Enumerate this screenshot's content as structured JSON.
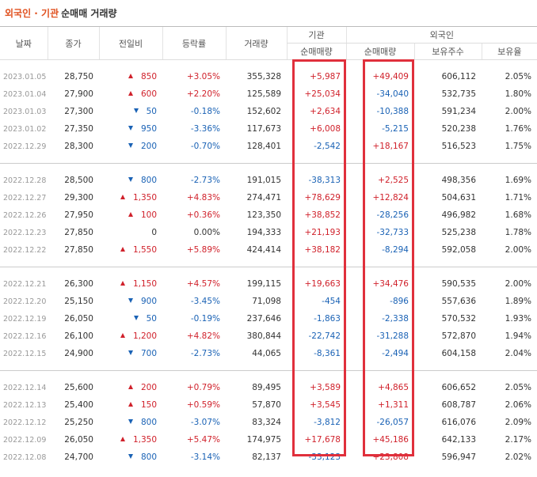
{
  "header": {
    "title_highlight": "외국인 · 기관",
    "title_rest": "순매매 거래량"
  },
  "table": {
    "columns": [
      "날짜",
      "종가",
      "전일비",
      "등락률",
      "거래량",
      "기관",
      "외국인"
    ],
    "subcolumns": [
      "순매매량",
      "순매매량",
      "보유주수",
      "보유율"
    ],
    "groups": [
      [
        {
          "dir": "up",
          "cells": [
            "2023.01.05",
            "28,750",
            "850",
            "+3.05%",
            "355,328",
            "+5,987",
            "+49,409",
            "606,112",
            "2.05%"
          ]
        },
        {
          "dir": "up",
          "cells": [
            "2023.01.04",
            "27,900",
            "600",
            "+2.20%",
            "125,589",
            "+25,034",
            "-34,040",
            "532,735",
            "1.80%"
          ]
        },
        {
          "dir": "down",
          "cells": [
            "2023.01.03",
            "27,300",
            "50",
            "-0.18%",
            "152,602",
            "+2,634",
            "-10,388",
            "591,234",
            "2.00%"
          ]
        },
        {
          "dir": "down",
          "cells": [
            "2023.01.02",
            "27,350",
            "950",
            "-3.36%",
            "117,673",
            "+6,008",
            "-5,215",
            "520,238",
            "1.76%"
          ]
        },
        {
          "dir": "down",
          "cells": [
            "2022.12.29",
            "28,300",
            "200",
            "-0.70%",
            "128,401",
            "-2,542",
            "+18,167",
            "516,523",
            "1.75%"
          ]
        }
      ],
      [
        {
          "dir": "down",
          "cells": [
            "2022.12.28",
            "28,500",
            "800",
            "-2.73%",
            "191,015",
            "-38,313",
            "+2,525",
            "498,356",
            "1.69%"
          ]
        },
        {
          "dir": "up",
          "cells": [
            "2022.12.27",
            "29,300",
            "1,350",
            "+4.83%",
            "274,471",
            "+78,629",
            "+12,824",
            "504,631",
            "1.71%"
          ]
        },
        {
          "dir": "up",
          "cells": [
            "2022.12.26",
            "27,950",
            "100",
            "+0.36%",
            "123,350",
            "+38,852",
            "-28,256",
            "496,982",
            "1.68%"
          ]
        },
        {
          "dir": "flat",
          "cells": [
            "2022.12.23",
            "27,850",
            "0",
            "0.00%",
            "194,333",
            "+21,193",
            "-32,733",
            "525,238",
            "1.78%"
          ]
        },
        {
          "dir": "up",
          "cells": [
            "2022.12.22",
            "27,850",
            "1,550",
            "+5.89%",
            "424,414",
            "+38,182",
            "-8,294",
            "592,058",
            "2.00%"
          ]
        }
      ],
      [
        {
          "dir": "up",
          "cells": [
            "2022.12.21",
            "26,300",
            "1,150",
            "+4.57%",
            "199,115",
            "+19,663",
            "+34,476",
            "590,535",
            "2.00%"
          ]
        },
        {
          "dir": "down",
          "cells": [
            "2022.12.20",
            "25,150",
            "900",
            "-3.45%",
            "71,098",
            "-454",
            "-896",
            "557,636",
            "1.89%"
          ]
        },
        {
          "dir": "down",
          "cells": [
            "2022.12.19",
            "26,050",
            "50",
            "-0.19%",
            "237,646",
            "-1,863",
            "-2,338",
            "570,532",
            "1.93%"
          ]
        },
        {
          "dir": "up",
          "cells": [
            "2022.12.16",
            "26,100",
            "1,200",
            "+4.82%",
            "380,844",
            "-22,742",
            "-31,288",
            "572,870",
            "1.94%"
          ]
        },
        {
          "dir": "down",
          "cells": [
            "2022.12.15",
            "24,900",
            "700",
            "-2.73%",
            "44,065",
            "-8,361",
            "-2,494",
            "604,158",
            "2.04%"
          ]
        }
      ],
      [
        {
          "dir": "up",
          "cells": [
            "2022.12.14",
            "25,600",
            "200",
            "+0.79%",
            "89,495",
            "+3,589",
            "+4,865",
            "606,652",
            "2.05%"
          ]
        },
        {
          "dir": "up",
          "cells": [
            "2022.12.13",
            "25,400",
            "150",
            "+0.59%",
            "57,870",
            "+3,545",
            "+1,311",
            "608,787",
            "2.06%"
          ]
        },
        {
          "dir": "down",
          "cells": [
            "2022.12.12",
            "25,250",
            "800",
            "-3.07%",
            "83,324",
            "-3,812",
            "-26,057",
            "616,076",
            "2.09%"
          ]
        },
        {
          "dir": "up",
          "cells": [
            "2022.12.09",
            "26,050",
            "1,350",
            "+5.47%",
            "174,975",
            "+17,678",
            "+45,186",
            "642,133",
            "2.17%"
          ]
        },
        {
          "dir": "down",
          "cells": [
            "2022.12.08",
            "24,700",
            "800",
            "-3.14%",
            "82,137",
            "-33,123",
            "+23,808",
            "596,947",
            "2.02%"
          ]
        }
      ]
    ]
  }
}
